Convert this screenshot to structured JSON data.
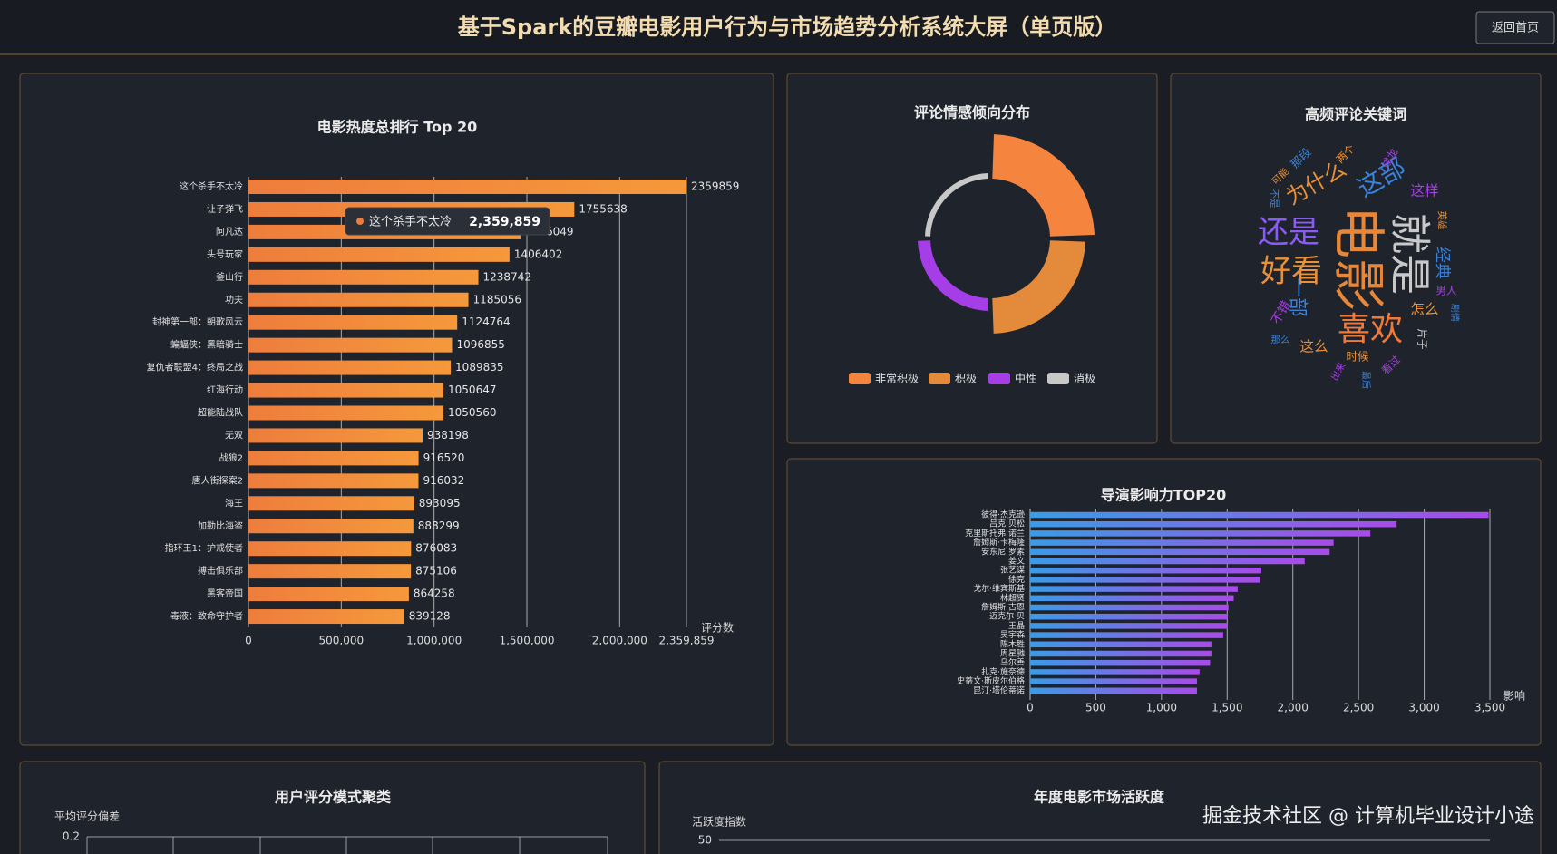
{
  "header": {
    "title": "基于Spark的豆瓣电影用户行为与市场趋势分析系统大屏（单页版）",
    "button": "返回首页"
  },
  "watermark": "掘金技术社区 @ 计算机毕业设计小途",
  "chart_data": [
    {
      "type": "hbar",
      "title": "电影热度总排行 Top 20",
      "x_label": "评分数",
      "categories": [
        "这个杀手不太冷",
        "让子弹飞",
        "阿凡达",
        "头号玩家",
        "釜山行",
        "功夫",
        "封神第一部：朝歌风云",
        "蝙蝠侠：黑暗骑士",
        "复仇者联盟4：终局之战",
        "红海行动",
        "超能陆战队",
        "无双",
        "战狼2",
        "唐人街探案2",
        "海王",
        "加勒比海盗",
        "指环王1：护戒使者",
        "搏击俱乐部",
        "黑客帝国",
        "毒液：致命守护者"
      ],
      "values": [
        2359859,
        1755638,
        1466049,
        1406402,
        1238742,
        1185056,
        1124764,
        1096855,
        1089835,
        1050647,
        1050560,
        938198,
        916520,
        916032,
        893095,
        888299,
        876083,
        875106,
        864258,
        839128
      ],
      "xlim": [
        0,
        2359859
      ],
      "xticks": [
        0,
        {
          "value": 500000,
          "label": "500,000"
        },
        {
          "value": 1000000,
          "label": "1,000,000"
        },
        {
          "value": 1500000,
          "label": "1,500,000"
        },
        {
          "value": 2000000,
          "label": "2,000,000"
        },
        {
          "value": 2359859,
          "label": "2,359,859"
        }
      ],
      "grid": true,
      "color": [
        "#ee7d3c",
        "#f5993b"
      ],
      "tooltip": {
        "label": "2,359,859"
      }
    },
    {
      "type": "rose",
      "title": "评论情感倾向分布",
      "categories": [
        "非常积极",
        "积极",
        "中性",
        "消极"
      ],
      "values": [
        45,
        35,
        10,
        2
      ],
      "colors": [
        "#f5843f",
        "#e38b3a",
        "#a63ee8",
        "#c8c8c8"
      ]
    },
    {
      "type": "wordcloud",
      "title": "高频评论关键词",
      "words": [
        {
          "text": "电影",
          "value": 95,
          "color": "#e6873a"
        },
        {
          "text": "就是",
          "value": 70,
          "color": "#c9c9c9"
        },
        {
          "text": "喜欢",
          "value": 52,
          "color": "#f07a3a"
        },
        {
          "text": "还是",
          "value": 48,
          "color": "#8a5cf5"
        },
        {
          "text": "好看",
          "value": 48,
          "color": "#e8913a"
        },
        {
          "text": "这部",
          "value": 36,
          "color": "#3b82d8"
        },
        {
          "text": "为什么",
          "value": 28,
          "color": "#e8913a"
        },
        {
          "text": "一部",
          "value": 24,
          "color": "#3b82d8"
        },
        {
          "text": "这样",
          "value": 12,
          "color": "#a63ee8"
        },
        {
          "text": "经典",
          "value": 16,
          "color": "#3b82d8"
        },
        {
          "text": "怎么",
          "value": 12,
          "color": "#e8913a"
        },
        {
          "text": "这么",
          "value": 12,
          "color": "#e8913a"
        },
        {
          "text": "不错",
          "value": 8,
          "color": "#a63ee8"
        },
        {
          "text": "时候",
          "value": 6,
          "color": "#e8913a"
        },
        {
          "text": "那段",
          "value": 6,
          "color": "#3b82d8"
        },
        {
          "text": "男人",
          "value": 4,
          "color": "#a63ee8"
        },
        {
          "text": "片子",
          "value": 4,
          "color": "#c9c9c9"
        },
        {
          "text": "两个",
          "value": 4,
          "color": "#e8913a"
        },
        {
          "text": "成龙",
          "value": 4,
          "color": "#a63ee8"
        },
        {
          "text": "看过",
          "value": 4,
          "color": "#a63ee8"
        },
        {
          "text": "那么",
          "value": 2,
          "color": "#3b82d8"
        },
        {
          "text": "可能",
          "value": 2,
          "color": "#e8913a"
        },
        {
          "text": "不是",
          "value": 2,
          "color": "#3b82d8"
        },
        {
          "text": "英雄",
          "value": 2,
          "color": "#e8913a"
        },
        {
          "text": "出来",
          "value": 2,
          "color": "#a63ee8"
        },
        {
          "text": "剧情",
          "value": 1,
          "color": "#3b82d8"
        },
        {
          "text": "最后",
          "value": 1,
          "color": "#3b82d8"
        }
      ]
    },
    {
      "type": "hbar",
      "title": "导演影响力TOP20",
      "x_label": "影响",
      "categories": [
        "彼得·杰克逊",
        "吕克·贝松",
        "克里斯托弗·诺兰",
        "詹姆斯·卡梅隆",
        "安东尼·罗素",
        "姜文",
        "张艺谋",
        "徐克",
        "戈尔·维宾斯基",
        "林超贤",
        "詹姆斯·古恩",
        "迈克尔·贝",
        "王晶",
        "吴宇森",
        "陈木胜",
        "周星驰",
        "乌尔善",
        "扎克·施奈德",
        "史蒂文·斯皮尔伯格",
        "昆汀·塔伦蒂诺"
      ],
      "values": [
        3490,
        2790,
        2590,
        2310,
        2280,
        2090,
        1760,
        1750,
        1580,
        1550,
        1510,
        1500,
        1500,
        1470,
        1380,
        1380,
        1370,
        1290,
        1270,
        1270
      ],
      "xlim": [
        0,
        3500
      ],
      "xticks": [
        0,
        500,
        {
          "value": 1000,
          "label": "1,000"
        },
        {
          "value": 1500,
          "label": "1,500"
        },
        {
          "value": 2000,
          "label": "2,000"
        },
        {
          "value": 2500,
          "label": "2,500"
        },
        {
          "value": 3000,
          "label": "3,000"
        },
        {
          "value": 3500,
          "label": "3,500"
        }
      ],
      "grid": true,
      "color": [
        "#3b9be6",
        "#a84be8"
      ]
    },
    {
      "type": "scatter",
      "title": "用户评分模式聚类",
      "y_label": "平均评分偏差",
      "yticks": [
        0.2
      ]
    },
    {
      "type": "line",
      "title": "年度电影市场活跃度",
      "y_label": "活跃度指数",
      "yticks": [
        50
      ]
    }
  ]
}
